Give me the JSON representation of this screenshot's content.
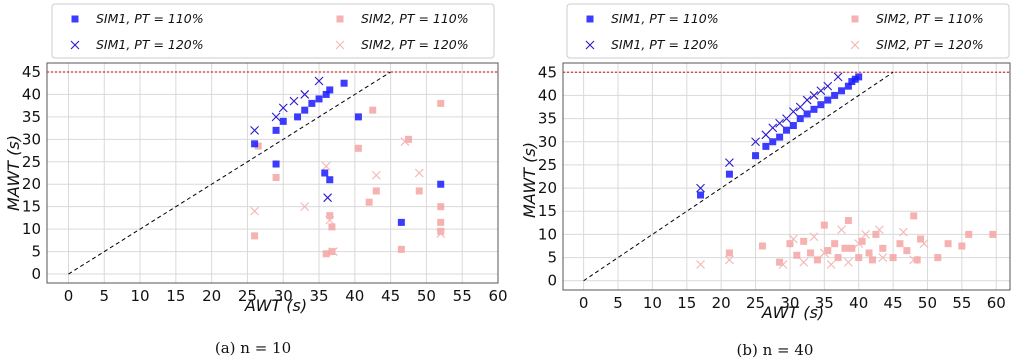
{
  "chart_data": [
    {
      "type": "scatter",
      "caption": "(a) n = 10",
      "xlabel": "AWT (s)",
      "ylabel": "MAWT (s)",
      "xlim": [
        -3,
        60
      ],
      "ylim": [
        -2,
        47
      ],
      "xticks": [
        "0",
        "5",
        "10",
        "15",
        "20",
        "25",
        "30",
        "35",
        "40",
        "45",
        "50",
        "55",
        "60"
      ],
      "yticks": [
        "0",
        "5",
        "10",
        "15",
        "20",
        "25",
        "30",
        "35",
        "40",
        "45"
      ],
      "grid": true,
      "legend_position": "top",
      "reference_lines": [
        {
          "kind": "horizontal",
          "y": 45,
          "color": "#e03030",
          "style": "dotted"
        },
        {
          "kind": "diagonal",
          "from": [
            0,
            0
          ],
          "to": [
            45,
            45
          ],
          "color": "#000000",
          "style": "dashed"
        }
      ],
      "series": [
        {
          "name": "SIM1, PT = 110%",
          "marker": "square",
          "color": "#1a1aff",
          "points": [
            [
              26,
              29
            ],
            [
              29,
              32
            ],
            [
              30,
              34
            ],
            [
              32,
              35
            ],
            [
              33,
              36.5
            ],
            [
              34,
              38
            ],
            [
              35,
              39
            ],
            [
              36,
              40
            ],
            [
              36.5,
              41
            ],
            [
              38.5,
              42.5
            ],
            [
              29,
              24.5
            ],
            [
              35.8,
              22.5
            ],
            [
              36.5,
              21
            ],
            [
              40.5,
              35
            ],
            [
              46.5,
              11.5
            ],
            [
              52,
              20
            ]
          ]
        },
        {
          "name": "SIM1, PT = 120%",
          "marker": "x",
          "color": "#2a1acc",
          "points": [
            [
              26,
              32
            ],
            [
              29,
              35
            ],
            [
              30,
              37
            ],
            [
              31.5,
              38.5
            ],
            [
              33,
              40
            ],
            [
              35,
              43
            ],
            [
              36.2,
              17
            ]
          ]
        },
        {
          "name": "SIM2, PT = 110%",
          "marker": "square",
          "color": "#f4a3a3",
          "points": [
            [
              26,
              8.5
            ],
            [
              29,
              21.5
            ],
            [
              26.5,
              28.5
            ],
            [
              36,
              4.5
            ],
            [
              36.5,
              13
            ],
            [
              36.8,
              5
            ],
            [
              36.8,
              10.5
            ],
            [
              40.5,
              28
            ],
            [
              42,
              16
            ],
            [
              43,
              18.5
            ],
            [
              42.5,
              36.5
            ],
            [
              46.5,
              5.5
            ],
            [
              47.5,
              30
            ],
            [
              49,
              18.5
            ],
            [
              52,
              38
            ],
            [
              52,
              9.5
            ],
            [
              52,
              11.5
            ],
            [
              52,
              15
            ]
          ]
        },
        {
          "name": "SIM2, PT = 120%",
          "marker": "x",
          "color": "#f4b5b5",
          "points": [
            [
              26,
              14
            ],
            [
              33,
              15
            ],
            [
              36,
              24
            ],
            [
              36.5,
              12
            ],
            [
              37,
              5
            ],
            [
              43,
              22
            ],
            [
              47,
              29.5
            ],
            [
              49,
              22.5
            ],
            [
              52,
              9
            ]
          ]
        }
      ]
    },
    {
      "type": "scatter",
      "caption": "(b) n = 40",
      "xlabel": "AWT (s)",
      "ylabel": "MAWT (s)",
      "xlim": [
        -3,
        62
      ],
      "ylim": [
        -2,
        47
      ],
      "xticks": [
        "0",
        "5",
        "10",
        "15",
        "20",
        "25",
        "30",
        "35",
        "40",
        "45",
        "50",
        "55",
        "60"
      ],
      "yticks": [
        "0",
        "5",
        "10",
        "15",
        "20",
        "25",
        "30",
        "35",
        "40",
        "45"
      ],
      "grid": true,
      "legend_position": "top",
      "reference_lines": [
        {
          "kind": "horizontal",
          "y": 45,
          "color": "#e03030",
          "style": "dotted"
        },
        {
          "kind": "diagonal",
          "from": [
            0,
            0
          ],
          "to": [
            45,
            45
          ],
          "color": "#000000",
          "style": "dashed"
        }
      ],
      "series": [
        {
          "name": "SIM1, PT = 110%",
          "marker": "square",
          "color": "#1a1aff",
          "points": [
            [
              17,
              18.5
            ],
            [
              21.2,
              23
            ],
            [
              25,
              27
            ],
            [
              26.5,
              29
            ],
            [
              27.5,
              30
            ],
            [
              28.5,
              31
            ],
            [
              29.5,
              32.5
            ],
            [
              30.5,
              33.5
            ],
            [
              31.5,
              35
            ],
            [
              32.5,
              36
            ],
            [
              33.5,
              37
            ],
            [
              34.5,
              38
            ],
            [
              35.5,
              39
            ],
            [
              36.5,
              40
            ],
            [
              37.5,
              41
            ],
            [
              38.5,
              42
            ],
            [
              39,
              43
            ],
            [
              39.5,
              43.5
            ],
            [
              40,
              44
            ]
          ]
        },
        {
          "name": "SIM1, PT = 120%",
          "marker": "x",
          "color": "#2a1acc",
          "points": [
            [
              17,
              20
            ],
            [
              21.2,
              25.5
            ],
            [
              25,
              30
            ],
            [
              26.5,
              31.5
            ],
            [
              27.5,
              33
            ],
            [
              28.5,
              34
            ],
            [
              29.5,
              35
            ],
            [
              30.5,
              36.5
            ],
            [
              31.5,
              37.5
            ],
            [
              32.5,
              39
            ],
            [
              33.5,
              40
            ],
            [
              34.5,
              41
            ],
            [
              35.5,
              42
            ],
            [
              37,
              44
            ]
          ]
        },
        {
          "name": "SIM2, PT = 110%",
          "marker": "square",
          "color": "#f4a3a3",
          "points": [
            [
              21.2,
              6
            ],
            [
              26,
              7.5
            ],
            [
              28.5,
              4
            ],
            [
              30,
              8
            ],
            [
              31,
              5.5
            ],
            [
              32,
              8.5
            ],
            [
              33,
              6
            ],
            [
              34,
              4.5
            ],
            [
              35,
              12
            ],
            [
              35.5,
              6.5
            ],
            [
              36.5,
              8
            ],
            [
              37,
              5
            ],
            [
              38,
              7
            ],
            [
              38.5,
              13
            ],
            [
              39,
              7
            ],
            [
              40,
              5
            ],
            [
              40.5,
              8.5
            ],
            [
              41.5,
              6
            ],
            [
              42,
              4.5
            ],
            [
              42.5,
              10
            ],
            [
              43.5,
              7
            ],
            [
              45,
              5
            ],
            [
              46,
              8
            ],
            [
              47,
              6.5
            ],
            [
              48,
              14
            ],
            [
              48.5,
              4.5
            ],
            [
              49,
              9
            ],
            [
              51.5,
              5
            ],
            [
              53,
              8
            ],
            [
              55,
              7.5
            ],
            [
              56,
              10
            ],
            [
              59.5,
              10
            ]
          ]
        },
        {
          "name": "SIM2, PT = 120%",
          "marker": "x",
          "color": "#f4b5b5",
          "points": [
            [
              17,
              3.5
            ],
            [
              21.2,
              4.5
            ],
            [
              29,
              3.5
            ],
            [
              30.5,
              9
            ],
            [
              32,
              4
            ],
            [
              33.5,
              9.5
            ],
            [
              35,
              6
            ],
            [
              36,
              3.5
            ],
            [
              37.5,
              11
            ],
            [
              38.5,
              4
            ],
            [
              40,
              8
            ],
            [
              41,
              10
            ],
            [
              43,
              11
            ],
            [
              43.5,
              5
            ],
            [
              46.5,
              10.5
            ],
            [
              48,
              4.5
            ],
            [
              49.5,
              8
            ]
          ]
        }
      ]
    }
  ]
}
